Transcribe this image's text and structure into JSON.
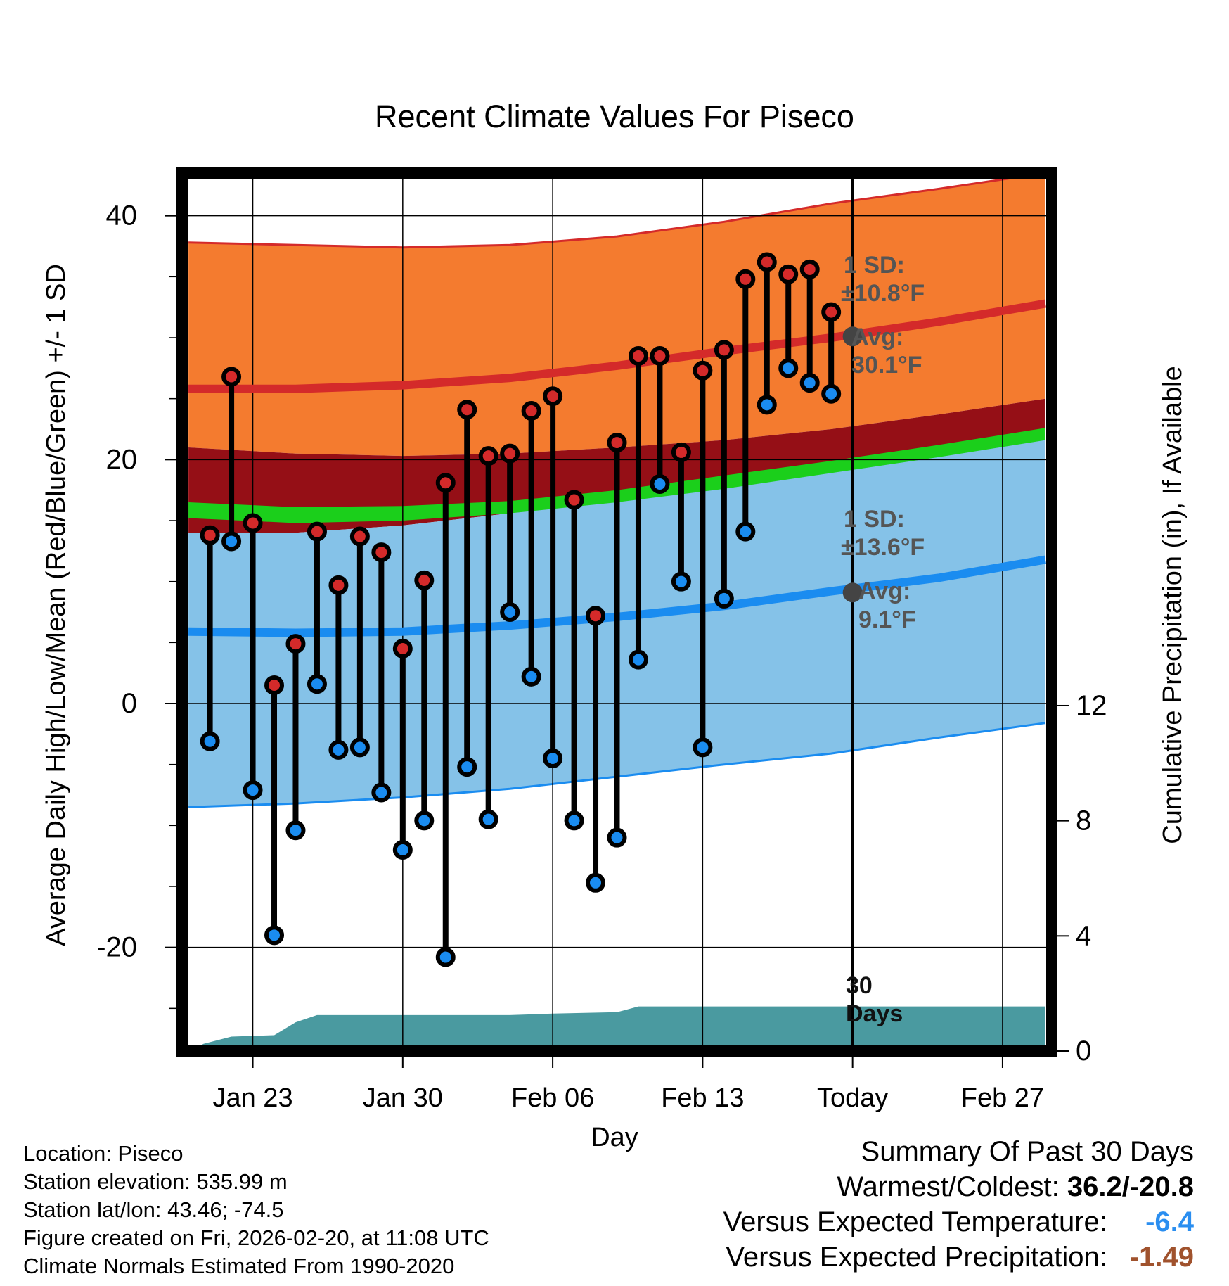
{
  "colors": {
    "record_high_band": "#f47b2f",
    "normal_high_band": "#950f16",
    "mean_band": "#1bcf1b",
    "low_band": "#85c2e8",
    "high_line": "#d42a2a",
    "low_line": "#1a8cf0",
    "precip": "#4a9aa0",
    "high_marker": "#d42a2a",
    "low_marker": "#1a8cf0",
    "today_marker": "#444444",
    "annotation": "#555555",
    "temp_departure": "#2a8ef0",
    "precip_departure": "#a0522d"
  },
  "chart_data": {
    "type": "line",
    "title": "Recent Climate Values For Piseco",
    "xlabel": "Day",
    "ylabel": "Average Daily High/Low/Mean (Red/Blue/Green) +/- 1 SD",
    "y2label": "Cumulative Precipitation (in), If Available",
    "xlim": [
      19.7,
      60.3
    ],
    "ylim": [
      -28.5,
      43.5
    ],
    "y2lim": [
      0,
      30.5
    ],
    "x_ticks": [
      {
        "x": 23,
        "label": "Jan 23"
      },
      {
        "x": 30,
        "label": "Jan 30"
      },
      {
        "x": 37,
        "label": "Feb 06"
      },
      {
        "x": 44,
        "label": "Feb 13"
      },
      {
        "x": 51,
        "label": "Today"
      },
      {
        "x": 58,
        "label": "Feb 27"
      }
    ],
    "y_ticks": [
      {
        "y": -20,
        "label": "-20"
      },
      {
        "y": 0,
        "label": "0"
      },
      {
        "y": 20,
        "label": "20"
      },
      {
        "y": 40,
        "label": "40"
      }
    ],
    "y2_ticks": [
      {
        "y": 0,
        "label": "0"
      },
      {
        "y": 4,
        "label": "4"
      },
      {
        "y": 8,
        "label": "8"
      },
      {
        "y": 12,
        "label": "12"
      }
    ],
    "normals_x": [
      20,
      25,
      30,
      35,
      40,
      45,
      50,
      55,
      60
    ],
    "normal_high": [
      25.8,
      25.8,
      26.1,
      26.7,
      27.7,
      28.9,
      30.0,
      31.3,
      32.8
    ],
    "normal_high_upper": [
      37.8,
      37.6,
      37.4,
      37.6,
      38.3,
      39.5,
      41.0,
      42.2,
      43.5
    ],
    "normal_high_lower": [
      21.0,
      20.5,
      20.3,
      20.5,
      21.0,
      21.6,
      22.5,
      23.7,
      25.0
    ],
    "normal_mean_upper": [
      16.5,
      16.1,
      16.2,
      16.6,
      17.5,
      18.7,
      19.9,
      21.2,
      22.6
    ],
    "normal_mean_lower": [
      15.2,
      14.8,
      15.0,
      15.6,
      16.3,
      17.6,
      18.8,
      20.1,
      21.4
    ],
    "normal_low_upper": [
      14.0,
      14.0,
      14.6,
      15.6,
      16.5,
      17.6,
      18.9,
      20.2,
      21.6
    ],
    "normal_low": [
      5.9,
      5.8,
      5.9,
      6.4,
      7.1,
      8.0,
      9.2,
      10.3,
      11.8
    ],
    "normal_low_lower": [
      -8.5,
      -8.2,
      -7.7,
      -7.0,
      -6.0,
      -5.0,
      -4.1,
      -2.8,
      -1.6
    ],
    "days": [
      21,
      22,
      23,
      24,
      25,
      26,
      27,
      28,
      29,
      30,
      31,
      32,
      33,
      34,
      35,
      36,
      37,
      38,
      39,
      40,
      41,
      42,
      43,
      44,
      45,
      46,
      47,
      48,
      49,
      50
    ],
    "highs": [
      13.8,
      26.8,
      14.8,
      1.5,
      4.9,
      14.1,
      9.7,
      13.7,
      12.4,
      4.5,
      10.1,
      18.1,
      24.1,
      20.3,
      20.5,
      24.0,
      25.2,
      16.7,
      7.2,
      21.4,
      28.5,
      28.5,
      20.6,
      27.3,
      29.0,
      34.8,
      36.2,
      35.2,
      35.6,
      32.1
    ],
    "lows": [
      -3.1,
      13.3,
      -7.1,
      -19.0,
      -10.4,
      1.6,
      -3.8,
      -3.6,
      -7.3,
      -12.0,
      -9.6,
      -20.8,
      -5.2,
      -9.5,
      7.5,
      2.2,
      -4.5,
      -9.6,
      -14.7,
      -11.0,
      3.6,
      18.0,
      10.0,
      -3.6,
      8.6,
      14.1,
      24.5,
      27.5,
      26.3,
      25.4
    ],
    "precip_x": [
      20,
      20.7,
      22,
      24,
      25,
      26,
      30,
      35,
      37,
      40,
      41,
      50,
      60
    ],
    "precip_cum": [
      0,
      0.25,
      0.5,
      0.55,
      1.0,
      1.25,
      1.25,
      1.25,
      1.3,
      1.35,
      1.55,
      1.55,
      1.55
    ],
    "today_x": 51,
    "today_high_avg": 30.1,
    "today_low_avg": 9.1,
    "high_annotation": {
      "sd_title": "1 SD:",
      "sd_value": "±10.8°F",
      "avg_title": "Avg:",
      "avg_value": "30.1°F"
    },
    "low_annotation": {
      "sd_title": "1 SD:",
      "sd_value": "±13.6°F",
      "avg_title": "Avg:",
      "avg_value": "9.1°F"
    },
    "window_label": [
      "30",
      "Days"
    ]
  },
  "footer": {
    "location": "Location: Piseco",
    "elevation": "Station elevation: 535.99 m",
    "latlon": "Station lat/lon: 43.46; -74.5",
    "created": "Figure created on Fri, 2026-02-20, at 11:08 UTC",
    "normals": "Climate Normals Estimated From 1990-2020"
  },
  "summary": {
    "title": "Summary Of Past 30 Days",
    "warmest_coldest_label": "Warmest/Coldest:",
    "warmest_coldest_value": "36.2/-20.8",
    "temp_label": "Versus Expected Temperature:",
    "temp_value": "-6.4",
    "precip_label": "Versus Expected Precipitation:",
    "precip_value": "-1.49"
  }
}
